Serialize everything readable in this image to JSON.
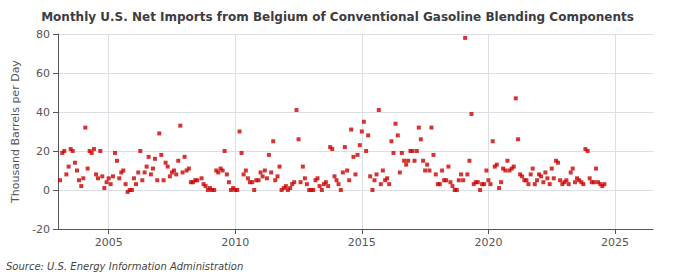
{
  "chart_data": {
    "type": "scatter",
    "title": "Monthly U.S. Net Imports from Belgium of Conventional Gasoline Blending Components",
    "ylabel": "Thousand Barrels per Day",
    "annotation": "Source: U.S. Energy Information Administration",
    "color": "#cc0000",
    "marker": "square",
    "grid": true,
    "xlim": [
      2003.0,
      2026.5
    ],
    "xticks": [
      2005,
      2010,
      2015,
      2020,
      2025
    ],
    "ylim": [
      -20,
      80
    ],
    "yticks": [
      -20,
      0,
      20,
      40,
      60,
      80
    ],
    "x": [
      2003.08,
      2003.17,
      2003.25,
      2003.33,
      2003.42,
      2003.5,
      2003.58,
      2003.67,
      2003.75,
      2003.83,
      2003.92,
      2004.0,
      2004.08,
      2004.17,
      2004.25,
      2004.33,
      2004.42,
      2004.5,
      2004.58,
      2004.67,
      2004.75,
      2004.83,
      2004.92,
      2005.0,
      2005.08,
      2005.17,
      2005.25,
      2005.33,
      2005.42,
      2005.5,
      2005.58,
      2005.67,
      2005.75,
      2005.83,
      2005.92,
      2006.0,
      2006.08,
      2006.17,
      2006.25,
      2006.33,
      2006.42,
      2006.5,
      2006.58,
      2006.67,
      2006.75,
      2006.83,
      2006.92,
      2007.0,
      2007.08,
      2007.17,
      2007.25,
      2007.33,
      2007.42,
      2007.5,
      2007.58,
      2007.67,
      2007.75,
      2007.83,
      2007.92,
      2008.0,
      2008.08,
      2008.17,
      2008.25,
      2008.33,
      2008.42,
      2008.5,
      2008.67,
      2008.75,
      2008.83,
      2008.92,
      2009.0,
      2009.08,
      2009.17,
      2009.25,
      2009.33,
      2009.42,
      2009.5,
      2009.58,
      2009.67,
      2009.75,
      2009.83,
      2009.92,
      2010.0,
      2010.08,
      2010.17,
      2010.25,
      2010.33,
      2010.42,
      2010.5,
      2010.58,
      2010.67,
      2010.75,
      2010.83,
      2010.92,
      2011.0,
      2011.08,
      2011.17,
      2011.25,
      2011.33,
      2011.42,
      2011.5,
      2011.58,
      2011.67,
      2011.75,
      2011.83,
      2011.92,
      2012.0,
      2012.08,
      2012.17,
      2012.25,
      2012.33,
      2012.42,
      2012.5,
      2012.58,
      2012.67,
      2012.75,
      2012.83,
      2012.92,
      2013.0,
      2013.08,
      2013.17,
      2013.25,
      2013.33,
      2013.42,
      2013.5,
      2013.58,
      2013.67,
      2013.75,
      2013.83,
      2013.92,
      2014.0,
      2014.08,
      2014.17,
      2014.25,
      2014.33,
      2014.42,
      2014.5,
      2014.58,
      2014.67,
      2014.75,
      2014.83,
      2014.92,
      2015.0,
      2015.08,
      2015.17,
      2015.25,
      2015.33,
      2015.42,
      2015.5,
      2015.58,
      2015.67,
      2015.75,
      2015.83,
      2015.92,
      2016.0,
      2016.08,
      2016.17,
      2016.25,
      2016.33,
      2016.42,
      2016.5,
      2016.58,
      2016.67,
      2016.75,
      2016.83,
      2016.92,
      2017.0,
      2017.08,
      2017.17,
      2017.25,
      2017.33,
      2017.42,
      2017.5,
      2017.58,
      2017.67,
      2017.75,
      2017.83,
      2017.92,
      2018.0,
      2018.08,
      2018.17,
      2018.25,
      2018.33,
      2018.42,
      2018.5,
      2018.58,
      2018.67,
      2018.75,
      2018.83,
      2018.92,
      2019.0,
      2019.08,
      2019.17,
      2019.25,
      2019.33,
      2019.42,
      2019.5,
      2019.58,
      2019.67,
      2019.75,
      2019.83,
      2019.92,
      2020.0,
      2020.08,
      2020.17,
      2020.25,
      2020.33,
      2020.42,
      2020.5,
      2020.58,
      2020.67,
      2020.75,
      2020.83,
      2020.92,
      2021.0,
      2021.08,
      2021.17,
      2021.25,
      2021.33,
      2021.42,
      2021.5,
      2021.58,
      2021.67,
      2021.75,
      2021.83,
      2021.92,
      2022.0,
      2022.08,
      2022.17,
      2022.25,
      2022.33,
      2022.42,
      2022.5,
      2022.58,
      2022.67,
      2022.75,
      2022.83,
      2022.92,
      2023.0,
      2023.08,
      2023.17,
      2023.25,
      2023.33,
      2023.42,
      2023.5,
      2023.58,
      2023.67,
      2023.75,
      2023.83,
      2023.92,
      2024.0,
      2024.08,
      2024.17,
      2024.25,
      2024.33,
      2024.42,
      2024.5,
      2024.58
    ],
    "values": [
      5,
      19,
      20,
      8,
      12,
      21,
      20,
      14,
      10,
      5,
      2,
      6,
      32,
      11,
      20,
      19,
      21,
      8,
      6,
      20,
      7,
      1,
      4,
      6,
      3,
      7,
      19,
      15,
      6,
      9,
      10,
      3,
      -1,
      0,
      0,
      6,
      3,
      9,
      20,
      5,
      9,
      12,
      17,
      8,
      11,
      16,
      5,
      29,
      18,
      5,
      14,
      12,
      7,
      9,
      10,
      8,
      15,
      33,
      9,
      17,
      10,
      11,
      4,
      4,
      5,
      5,
      6,
      3,
      2,
      0,
      1,
      0,
      0,
      10,
      9,
      11,
      10,
      20,
      8,
      4,
      0,
      1,
      0,
      0,
      30,
      19,
      8,
      10,
      6,
      4,
      4,
      0,
      5,
      5,
      9,
      7,
      10,
      6,
      18,
      9,
      25,
      5,
      7,
      12,
      0,
      1,
      2,
      0,
      1,
      3,
      4,
      41,
      26,
      4,
      12,
      6,
      3,
      0,
      0,
      0,
      5,
      6,
      2,
      0,
      3,
      4,
      2,
      22,
      21,
      7,
      5,
      3,
      0,
      9,
      22,
      10,
      5,
      31,
      17,
      8,
      18,
      23,
      30,
      35,
      20,
      28,
      7,
      0,
      5,
      8,
      41,
      3,
      10,
      5,
      6,
      3,
      25,
      19,
      34,
      28,
      9,
      19,
      15,
      13,
      15,
      20,
      20,
      15,
      20,
      32,
      26,
      15,
      10,
      13,
      10,
      32,
      18,
      8,
      3,
      3,
      10,
      5,
      5,
      12,
      4,
      2,
      0,
      0,
      5,
      8,
      5,
      78,
      8,
      15,
      39,
      3,
      4,
      4,
      0,
      3,
      3,
      10,
      5,
      3,
      25,
      12,
      13,
      1,
      4,
      11,
      10,
      15,
      10,
      11,
      12,
      47,
      26,
      8,
      7,
      5,
      5,
      3,
      8,
      11,
      3,
      5,
      8,
      7,
      4,
      9,
      6,
      3,
      11,
      6,
      15,
      14,
      5,
      3,
      4,
      5,
      3,
      9,
      11,
      4,
      6,
      5,
      4,
      3,
      21,
      20,
      6,
      4,
      4,
      11,
      4,
      3,
      2,
      3
    ]
  }
}
